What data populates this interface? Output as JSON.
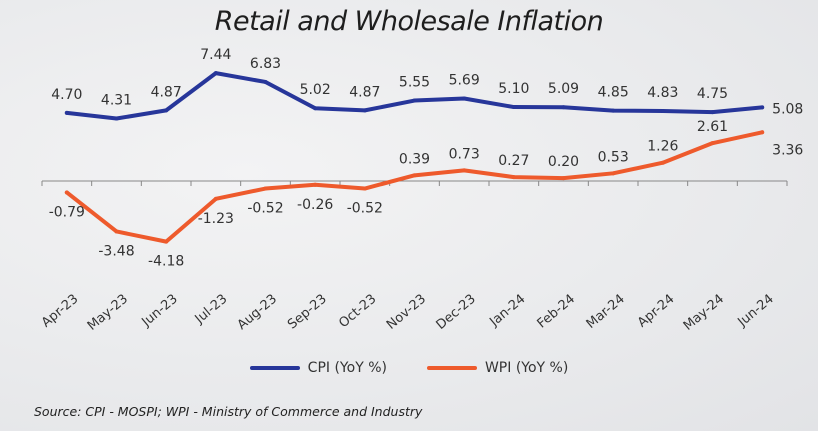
{
  "chart_data": {
    "type": "line",
    "title": "Retail and Wholesale Inflation",
    "xlabel": "",
    "ylabel": "",
    "categories": [
      "Apr-23",
      "May-23",
      "Jun-23",
      "Jul-23",
      "Aug-23",
      "Sep-23",
      "Oct-23",
      "Nov-23",
      "Dec-23",
      "Jan-24",
      "Feb-24",
      "Mar-24",
      "Apr-24",
      "May-24",
      "Jun-24"
    ],
    "series": [
      {
        "name": "CPI (YoY %)",
        "color": "#27369a",
        "values": [
          4.7,
          4.31,
          4.87,
          7.44,
          6.83,
          5.02,
          4.87,
          5.55,
          5.69,
          5.1,
          5.09,
          4.85,
          4.83,
          4.75,
          5.08
        ],
        "labels": [
          "4.70",
          "4.31",
          "4.87",
          "7.44",
          "6.83",
          "5.02",
          "4.87",
          "5.55",
          "5.69",
          "5.10",
          "5.09",
          "4.85",
          "4.83",
          "4.75",
          "5.08"
        ]
      },
      {
        "name": "WPI (YoY %)",
        "color": "#ee5a2c",
        "values": [
          -0.79,
          -3.48,
          -4.18,
          -1.23,
          -0.52,
          -0.26,
          -0.52,
          0.39,
          0.73,
          0.27,
          0.2,
          0.53,
          1.26,
          2.61,
          3.36
        ],
        "labels": [
          "-0.79",
          "-3.48",
          "-4.18",
          "-1.23",
          "-0.52",
          "-0.26",
          "-0.52",
          "0.39",
          "0.73",
          "0.27",
          "0.20",
          "0.53",
          "1.26",
          "2.61",
          "3.36"
        ]
      }
    ],
    "ylim": [
      -5,
      8
    ],
    "grid": false,
    "legend": "bottom-center"
  },
  "source": "Source: CPI - MOSPI; WPI - Ministry of Commerce and Industry"
}
